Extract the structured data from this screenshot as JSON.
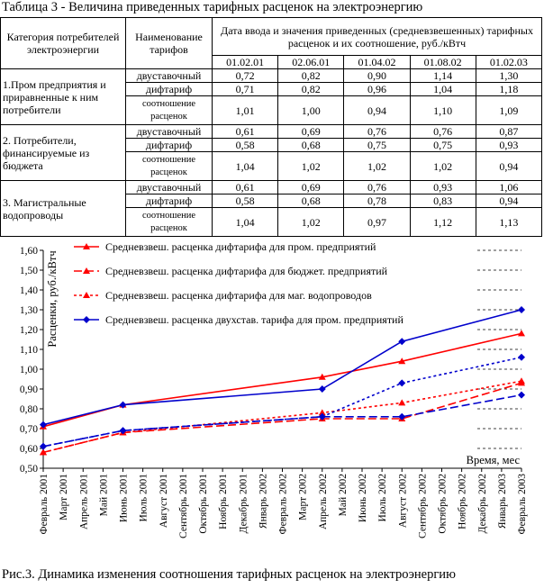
{
  "table": {
    "title": "Таблица 3 - Величина приведенных тарифных расценок на электроэнергию",
    "header_category": "Категория потребителей электроэнергии",
    "header_tariff_name": "Наименование тарифов",
    "header_dates": "Дата ввода и значения приведенных (средневзвешенных) тарифных расценок и их соотношение, руб./кВтч",
    "dates": [
      "01.02.01",
      "02.06.01",
      "01.04.02",
      "01.08.02",
      "01.02.03"
    ],
    "groups": [
      {
        "category": "1.Пром предприятия и приравненные к ним потребители",
        "rows": [
          {
            "label": "двуставочный",
            "values": [
              "0,72",
              "0,82",
              "0,90",
              "1,14",
              "1,30"
            ]
          },
          {
            "label": "дифтариф",
            "values": [
              "0,71",
              "0,82",
              "0,96",
              "1,04",
              "1,18"
            ]
          },
          {
            "label": "соотношение расценок",
            "values": [
              "1,01",
              "1,00",
              "0,94",
              "1,10",
              "1,09"
            ]
          }
        ]
      },
      {
        "category": "2. Потребители, финансируемые из бюджета",
        "rows": [
          {
            "label": "двуставочный",
            "values": [
              "0,61",
              "0,69",
              "0,76",
              "0,76",
              "0,87"
            ]
          },
          {
            "label": "дифтариф",
            "values": [
              "0,58",
              "0,68",
              "0,75",
              "0,75",
              "0,93"
            ]
          },
          {
            "label": "соотношение расценок",
            "values": [
              "1,04",
              "1,02",
              "1,02",
              "1,02",
              "0,94"
            ]
          }
        ]
      },
      {
        "category": "3. Магистральные водопроводы",
        "rows": [
          {
            "label": "двуставочный",
            "values": [
              "0,61",
              "0,69",
              "0,76",
              "0,93",
              "1,06"
            ]
          },
          {
            "label": "дифтариф",
            "values": [
              "0,58",
              "0,68",
              "0,78",
              "0,83",
              "0,94"
            ]
          },
          {
            "label": "соотношение расценок",
            "values": [
              "1,04",
              "1,02",
              "0,97",
              "1,12",
              "1,13"
            ]
          }
        ]
      }
    ]
  },
  "chart_data": {
    "type": "line",
    "ylabel": "Расценки, руб./кВтч",
    "xlabel": "Время, мес",
    "ylim": [
      0.5,
      1.6
    ],
    "yticks": [
      "0,50",
      "0,60",
      "0,70",
      "0,80",
      "0,90",
      "1,00",
      "1,10",
      "1,20",
      "1,30",
      "1,40",
      "1,50",
      "1,60"
    ],
    "ytick_values": [
      0.5,
      0.6,
      0.7,
      0.8,
      0.9,
      1.0,
      1.1,
      1.2,
      1.3,
      1.4,
      1.5,
      1.6
    ],
    "x": [
      "Февраль 2001",
      "Март 2001",
      "Апрель 2001",
      "Май 2001",
      "Июнь 2001",
      "Июль 2001",
      "Август 2001",
      "Сентябрь 2001",
      "Октябрь 2001",
      "Ноябрь 2001",
      "Декабрь 2001",
      "Январь 2002",
      "Февраль 2002",
      "Март 2002",
      "Апрель 2002",
      "Май 2002",
      "Июнь 2002",
      "Июль 2002",
      "Август 2002",
      "Сентябрь 2002",
      "Октябрь 2002",
      "Ноябрь 2002",
      "Декабрь 2002",
      "Январь 2003",
      "Февраль 2003"
    ],
    "legend_position": "top-left",
    "grid": "horizontal dashed on upper right",
    "series": [
      {
        "name": "Средневзвеш. расценка дифтарифа для пром. предприятий",
        "color": "#ff0000",
        "style": "solid",
        "marker": "triangle",
        "points": [
          [
            0,
            0.71
          ],
          [
            4,
            0.82
          ],
          [
            14,
            0.96
          ],
          [
            18,
            1.04
          ],
          [
            24,
            1.18
          ]
        ]
      },
      {
        "name": "Средневзвеш. расценка дифтарифа для бюджет. предприятий",
        "color": "#ff0000",
        "style": "dash",
        "marker": "triangle",
        "points": [
          [
            0,
            0.58
          ],
          [
            4,
            0.68
          ],
          [
            14,
            0.75
          ],
          [
            18,
            0.75
          ],
          [
            24,
            0.93
          ]
        ]
      },
      {
        "name": "Средневзвеш. расценка дифтарифа для маг. водопроводов",
        "color": "#ff0000",
        "style": "dot",
        "marker": "triangle",
        "points": [
          [
            0,
            0.58
          ],
          [
            4,
            0.68
          ],
          [
            14,
            0.78
          ],
          [
            18,
            0.83
          ],
          [
            24,
            0.94
          ]
        ]
      },
      {
        "name": "Средневзвеш. расценка двухстав. тарифа для пром. предприятий",
        "color": "#0000cc",
        "style": "solid",
        "marker": "diamond",
        "points": [
          [
            0,
            0.72
          ],
          [
            4,
            0.82
          ],
          [
            14,
            0.9
          ],
          [
            18,
            1.14
          ],
          [
            24,
            1.3
          ]
        ]
      },
      {
        "color": "#0000cc",
        "style": "dash",
        "marker": "diamond",
        "points": [
          [
            0,
            0.61
          ],
          [
            4,
            0.69
          ],
          [
            14,
            0.76
          ],
          [
            18,
            0.76
          ],
          [
            24,
            0.87
          ]
        ]
      },
      {
        "color": "#0000cc",
        "style": "dot",
        "marker": "diamond",
        "points": [
          [
            0,
            0.61
          ],
          [
            4,
            0.69
          ],
          [
            14,
            0.76
          ],
          [
            18,
            0.93
          ],
          [
            24,
            1.06
          ]
        ]
      }
    ]
  },
  "figure_caption": "Рис.3. Динамика изменения соотношения тарифных расценок на электроэнергию"
}
